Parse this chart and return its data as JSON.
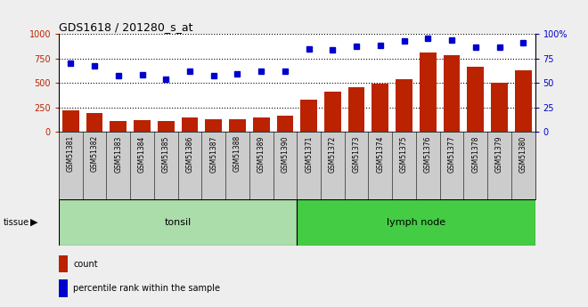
{
  "title": "GDS1618 / 201280_s_at",
  "categories": [
    "GSM51381",
    "GSM51382",
    "GSM51383",
    "GSM51384",
    "GSM51385",
    "GSM51386",
    "GSM51387",
    "GSM51388",
    "GSM51389",
    "GSM51390",
    "GSM51371",
    "GSM51372",
    "GSM51373",
    "GSM51374",
    "GSM51375",
    "GSM51376",
    "GSM51377",
    "GSM51378",
    "GSM51379",
    "GSM51380"
  ],
  "counts": [
    220,
    193,
    113,
    123,
    115,
    148,
    128,
    130,
    145,
    168,
    330,
    415,
    455,
    490,
    535,
    810,
    780,
    660,
    500,
    625
  ],
  "percentiles": [
    70,
    67,
    57,
    58,
    54,
    62,
    57,
    59,
    62,
    62,
    85,
    84,
    87,
    88,
    93,
    95,
    94,
    86,
    86,
    91
  ],
  "bar_color": "#bb2200",
  "dot_color": "#0000cc",
  "tonsil_count": 10,
  "lymph_count": 10,
  "tonsil_label": "tonsil",
  "lymph_label": "lymph node",
  "tonsil_color": "#aaddaa",
  "lymph_color": "#44cc44",
  "tissue_label": "tissue",
  "legend_count_label": "count",
  "legend_pct_label": "percentile rank within the sample",
  "ylim_left": [
    0,
    1000
  ],
  "ylim_right": [
    0,
    100
  ],
  "yticks_left": [
    0,
    250,
    500,
    750,
    1000
  ],
  "yticks_right": [
    0,
    25,
    50,
    75,
    100
  ],
  "bg_color": "#cccccc",
  "plot_bg_color": "#ffffff",
  "fig_bg_color": "#eeeeee"
}
